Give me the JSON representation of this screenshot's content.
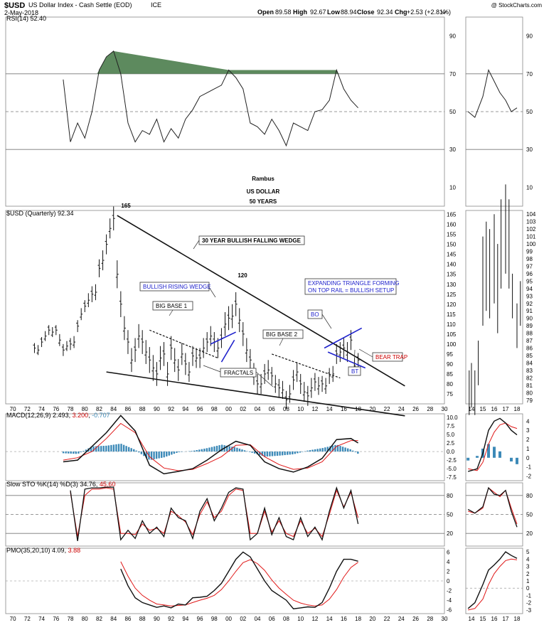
{
  "header": {
    "symbol": "$USD",
    "name": "US Dollar Index - Cash Settle (EOD)",
    "exchange": "ICE",
    "date": "2-May-2018",
    "watermark": "@ StockCharts.com",
    "ohlc": {
      "open_label": "Open",
      "open": "89.58",
      "high_label": "High",
      "high": "92.67",
      "low_label": "Low",
      "low": "88.94",
      "close_label": "Close",
      "close": "92.34",
      "chg_label": "Chg",
      "chg": "+2.53 (+2.81%)"
    }
  },
  "colors": {
    "up": "#009900",
    "down": "#cc0000",
    "blue": "#1f22cc",
    "rsi_fill": "#5d8a5e",
    "hist": "#3d8ab8",
    "signal": "#e01818"
  },
  "annotations": {
    "peak_1985": "165",
    "peak_2001": "120",
    "falling_wedge": "30 YEAR BULLISH FALLING WEDGE",
    "rising_wedge": "BULLISH RISING WEDGE",
    "big_base_1": "BIG BASE 1",
    "big_base_2": "BIG BASE 2",
    "fractals": "FRACTALS",
    "expanding_triangle_1": "EXPANDING TRIANGLE FORMING",
    "expanding_triangle_2": "ON TOP RAIL = BULLISH SETUP",
    "bo": "BO",
    "bt": "BT",
    "bear_trap": "BEAR TRAP",
    "author": "Rambus",
    "title_1": "US DOLLAR",
    "title_2": "50 YEARS"
  },
  "chart_data": [
    {
      "type": "line",
      "panel": "rsi",
      "label": "RSI(14)",
      "last": "52.40",
      "yticks": [
        10,
        30,
        50,
        70,
        90
      ],
      "ylim": [
        0,
        100
      ],
      "reference_lines": [
        30,
        50,
        70
      ],
      "x_years": [
        1977,
        1978,
        1979,
        1980,
        1981,
        1982,
        1983,
        1984,
        1985,
        1986,
        1987,
        1988,
        1989,
        1990,
        1991,
        1992,
        1993,
        1994,
        1995,
        1996,
        1997,
        1998,
        1999,
        2000,
        2001,
        2002,
        2003,
        2004,
        2005,
        2006,
        2007,
        2008,
        2009,
        2010,
        2011,
        2012,
        2013,
        2014,
        2015,
        2016,
        2017,
        2018
      ],
      "values": [
        67,
        34,
        44,
        36,
        50,
        72,
        79,
        82,
        70,
        44,
        34,
        40,
        38,
        46,
        34,
        41,
        36,
        46,
        51,
        58,
        60,
        62,
        64,
        72,
        68,
        62,
        44,
        42,
        38,
        46,
        40,
        32,
        44,
        42,
        40,
        50,
        51,
        56,
        72,
        62,
        56,
        52
      ]
    },
    {
      "type": "ohlc",
      "panel": "price",
      "label": "$USD (Quarterly)",
      "last": "92.34",
      "xlim": [
        1969,
        2030
      ],
      "xticks": [
        "70",
        "72",
        "74",
        "76",
        "78",
        "80",
        "82",
        "84",
        "86",
        "88",
        "90",
        "92",
        "94",
        "96",
        "98",
        "00",
        "02",
        "04",
        "06",
        "08",
        "10",
        "12",
        "14",
        "16",
        "18",
        "20",
        "22",
        "24",
        "26",
        "28",
        "30"
      ],
      "yticks": [
        75,
        80,
        85,
        90,
        95,
        100,
        105,
        110,
        115,
        120,
        125,
        130,
        135,
        140,
        145,
        150,
        155,
        160,
        165
      ],
      "ylim": [
        70,
        167
      ],
      "x": [
        1973.0,
        1973.5,
        1974.0,
        1974.5,
        1975.0,
        1975.5,
        1976.0,
        1976.5,
        1977.0,
        1977.5,
        1978.0,
        1978.5,
        1979.0,
        1979.5,
        1980.0,
        1980.5,
        1981.0,
        1981.5,
        1982.0,
        1982.5,
        1983.0,
        1983.5,
        1984.0,
        1984.5,
        1985.0,
        1985.5,
        1986.0,
        1986.5,
        1987.0,
        1987.5,
        1988.0,
        1988.5,
        1989.0,
        1989.5,
        1990.0,
        1990.5,
        1991.0,
        1991.5,
        1992.0,
        1992.5,
        1993.0,
        1993.5,
        1994.0,
        1994.5,
        1995.0,
        1995.5,
        1996.0,
        1996.5,
        1997.0,
        1997.5,
        1998.0,
        1998.5,
        1999.0,
        1999.5,
        2000.0,
        2000.5,
        2001.0,
        2001.5,
        2002.0,
        2002.5,
        2003.0,
        2003.5,
        2004.0,
        2004.5,
        2005.0,
        2005.5,
        2006.0,
        2006.5,
        2007.0,
        2007.5,
        2008.0,
        2008.5,
        2009.0,
        2009.5,
        2010.0,
        2010.5,
        2011.0,
        2011.5,
        2012.0,
        2012.5,
        2013.0,
        2013.5,
        2014.0,
        2014.5,
        2015.0,
        2015.5,
        2016.0,
        2016.5,
        2017.0,
        2017.5,
        2018.0
      ],
      "close": [
        98,
        97,
        101,
        104,
        107,
        106,
        107,
        102,
        97,
        99,
        100,
        101,
        109,
        115,
        119,
        122,
        125,
        126,
        138,
        142,
        150,
        158,
        163,
        135,
        120,
        108,
        101,
        92,
        97,
        104,
        101,
        96,
        92,
        88,
        85,
        93,
        95,
        85,
        98,
        92,
        87,
        95,
        90,
        86,
        94,
        93,
        93,
        98,
        101,
        104,
        101,
        98,
        103,
        110,
        113,
        114,
        120,
        112,
        105,
        97,
        92,
        85,
        80,
        80,
        85,
        87,
        84,
        80,
        78,
        77,
        72,
        75,
        82,
        86,
        80,
        76,
        74,
        78,
        81,
        79,
        80,
        79,
        84,
        85,
        95,
        96,
        98,
        96,
        102,
        89,
        92
      ],
      "range": [
        5,
        5,
        5,
        5,
        5,
        5,
        5,
        6,
        6,
        5,
        6,
        6,
        6,
        6,
        6,
        7,
        8,
        8,
        9,
        10,
        10,
        10,
        12,
        14,
        13,
        12,
        12,
        12,
        12,
        12,
        12,
        12,
        13,
        13,
        12,
        12,
        12,
        12,
        12,
        12,
        11,
        11,
        11,
        10,
        10,
        10,
        10,
        10,
        10,
        10,
        10,
        10,
        10,
        12,
        12,
        12,
        12,
        12,
        12,
        12,
        11,
        11,
        10,
        10,
        10,
        10,
        9,
        9,
        9,
        9,
        9,
        9,
        10,
        10,
        10,
        10,
        10,
        10,
        9,
        9,
        8,
        8,
        8,
        8,
        10,
        10,
        10,
        10,
        10,
        8,
        7
      ]
    },
    {
      "type": "line",
      "panel": "macd",
      "label": "MACD(12,26,9)",
      "values_label": [
        "2.493",
        "3.200",
        "-0.707"
      ],
      "yticks": [
        -7.5,
        -5.0,
        -2.5,
        0.0,
        2.5,
        5.0,
        7.5,
        10.0
      ],
      "ylim": [
        -8.5,
        11
      ],
      "x_years": [
        1977,
        1979,
        1981,
        1983,
        1985,
        1987,
        1989,
        1991,
        1993,
        1995,
        1997,
        1999,
        2001,
        2003,
        2005,
        2007,
        2009,
        2011,
        2013,
        2015,
        2017,
        2018
      ],
      "macd": [
        -3,
        -2.5,
        1.5,
        5.5,
        10.5,
        6,
        -4,
        -6.5,
        -5.8,
        -5,
        -2.5,
        0.5,
        3,
        1.8,
        -3,
        -5,
        -6,
        -4.5,
        -2,
        3.5,
        3.8,
        2.5
      ],
      "signal": [
        -2.5,
        -1.8,
        0,
        3.8,
        8.2,
        5.5,
        -1.5,
        -4.8,
        -5.6,
        -5.2,
        -3.5,
        -1.5,
        1.8,
        2,
        -1.5,
        -3.8,
        -5.2,
        -4.8,
        -3,
        1.5,
        3.2,
        3.2
      ],
      "histogram": [
        -0.5,
        -0.7,
        1.5,
        1.7,
        2.3,
        0.5,
        -2.5,
        -1.7,
        -0.2,
        0.2,
        1.0,
        2.0,
        1.2,
        -0.2,
        -1.5,
        -1.2,
        -0.8,
        0.3,
        1.0,
        2.0,
        0.6,
        -0.7
      ]
    },
    {
      "type": "line",
      "panel": "stochastic",
      "label": "Slow STO %K(14) %D(3)",
      "values_label": [
        "34.76",
        "45.60"
      ],
      "yticks": [
        20,
        50,
        80
      ],
      "ylim": [
        0,
        100
      ],
      "reference_lines": [
        20,
        50,
        80
      ],
      "x_years": [
        1978,
        1979,
        1980,
        1981,
        1982,
        1983,
        1984,
        1985,
        1986,
        1987,
        1988,
        1989,
        1990,
        1991,
        1992,
        1993,
        1994,
        1995,
        1996,
        1997,
        1998,
        1999,
        2000,
        2001,
        2002,
        2003,
        2004,
        2005,
        2006,
        2007,
        2008,
        2009,
        2010,
        2011,
        2012,
        2013,
        2014,
        2015,
        2016,
        2017,
        2018
      ],
      "k": [
        88,
        8,
        90,
        92,
        92,
        93,
        93,
        10,
        25,
        12,
        40,
        20,
        30,
        15,
        60,
        45,
        40,
        12,
        55,
        75,
        40,
        60,
        85,
        92,
        90,
        10,
        20,
        60,
        18,
        45,
        15,
        10,
        45,
        15,
        30,
        10,
        55,
        92,
        60,
        88,
        35
      ],
      "d": [
        85,
        15,
        80,
        90,
        90,
        92,
        90,
        20,
        20,
        18,
        35,
        25,
        28,
        20,
        55,
        48,
        38,
        18,
        50,
        70,
        45,
        55,
        80,
        90,
        88,
        20,
        20,
        55,
        22,
        40,
        20,
        15,
        40,
        20,
        28,
        15,
        50,
        88,
        62,
        85,
        45
      ]
    },
    {
      "type": "line",
      "panel": "pmo",
      "label": "PMO(35,20,10)",
      "values_label": [
        "4.09",
        "3.88"
      ],
      "yticks": [
        -6,
        -4,
        -2,
        0,
        2,
        4,
        6
      ],
      "ylim": [
        -6.8,
        6.8
      ],
      "x_years": [
        1985,
        1986,
        1987,
        1988,
        1989,
        1990,
        1991,
        1992,
        1993,
        1994,
        1995,
        1996,
        1997,
        1998,
        1999,
        2000,
        2001,
        2002,
        2003,
        2004,
        2005,
        2006,
        2007,
        2008,
        2009,
        2010,
        2011,
        2012,
        2013,
        2014,
        2015,
        2016,
        2017,
        2018
      ],
      "pmo": [
        2.5,
        -1,
        -3.5,
        -4.5,
        -5,
        -5.5,
        -5.2,
        -5.6,
        -4.8,
        -5,
        -3.5,
        -3.4,
        -3.2,
        -2,
        -0.5,
        2,
        4.5,
        6,
        5,
        2.5,
        0,
        -2,
        -3,
        -4,
        -5.8,
        -5.6,
        -5.4,
        -5.5,
        -4.5,
        -1.5,
        2,
        4.5,
        4.5,
        4.09
      ],
      "signal": [
        4,
        1,
        -1.5,
        -3,
        -4,
        -4.8,
        -5,
        -5.2,
        -5.1,
        -5,
        -4.5,
        -4,
        -3.6,
        -3,
        -1.8,
        0,
        2,
        3.8,
        4.4,
        3.6,
        2.2,
        0.2,
        -1.5,
        -2.8,
        -4,
        -4.6,
        -5,
        -5.2,
        -5,
        -3.8,
        -1.8,
        0.8,
        2.8,
        3.88
      ]
    }
  ],
  "zoom_panel": {
    "xticks": [
      "14",
      "15",
      "16",
      "17",
      "18"
    ],
    "price_yticks": [
      79,
      80,
      81,
      82,
      83,
      84,
      85,
      86,
      87,
      88,
      89,
      90,
      91,
      92,
      93,
      94,
      95,
      96,
      97,
      98,
      99,
      100,
      101,
      102,
      103,
      104
    ],
    "rsi_yticks": [
      10,
      30,
      50,
      70,
      90
    ],
    "macd_yticks": [
      -2,
      -1,
      0,
      1,
      2,
      3,
      4
    ],
    "sto_yticks": [
      20,
      50,
      80
    ],
    "pmo_yticks": [
      -3,
      -2,
      -1,
      0,
      1,
      2,
      3,
      4,
      5
    ]
  }
}
